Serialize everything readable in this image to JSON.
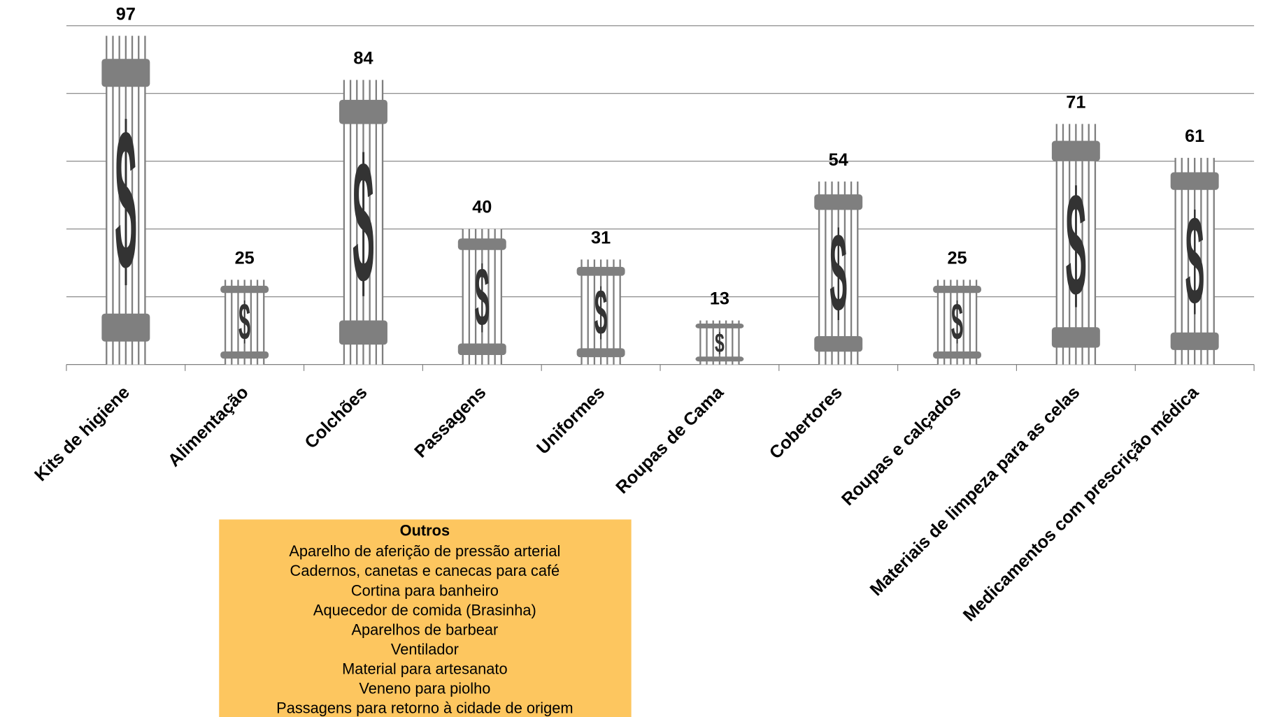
{
  "chart_data": {
    "type": "bar",
    "categories": [
      "Kits de higiene",
      "Alimentação",
      "Colchões",
      "Passagens",
      "Uniformes",
      "Roupas de Cama",
      "Cobertores",
      "Roupas e calçados",
      "Materiais de limpeza para as celas",
      "Medicamentos com prescrição médica"
    ],
    "values": [
      97,
      25,
      84,
      40,
      31,
      13,
      54,
      25,
      71,
      61
    ],
    "color": "#7f7f7f",
    "ylim": [
      0,
      100
    ],
    "yticks": [
      0,
      20,
      40,
      60,
      80,
      100
    ],
    "grid": true,
    "annotation": {
      "title": "Outros",
      "items": [
        "Aparelho de aferição de pressão arterial",
        "Cadernos, canetas e canecas para café",
        "Cortina para banheiro",
        "Aquecedor de comida (Brasinha)",
        "Aparelhos de barbear",
        "Ventilador",
        "Material para artesanato",
        "Veneno para piolho",
        "Passagens para retorno à cidade de origem"
      ]
    }
  }
}
